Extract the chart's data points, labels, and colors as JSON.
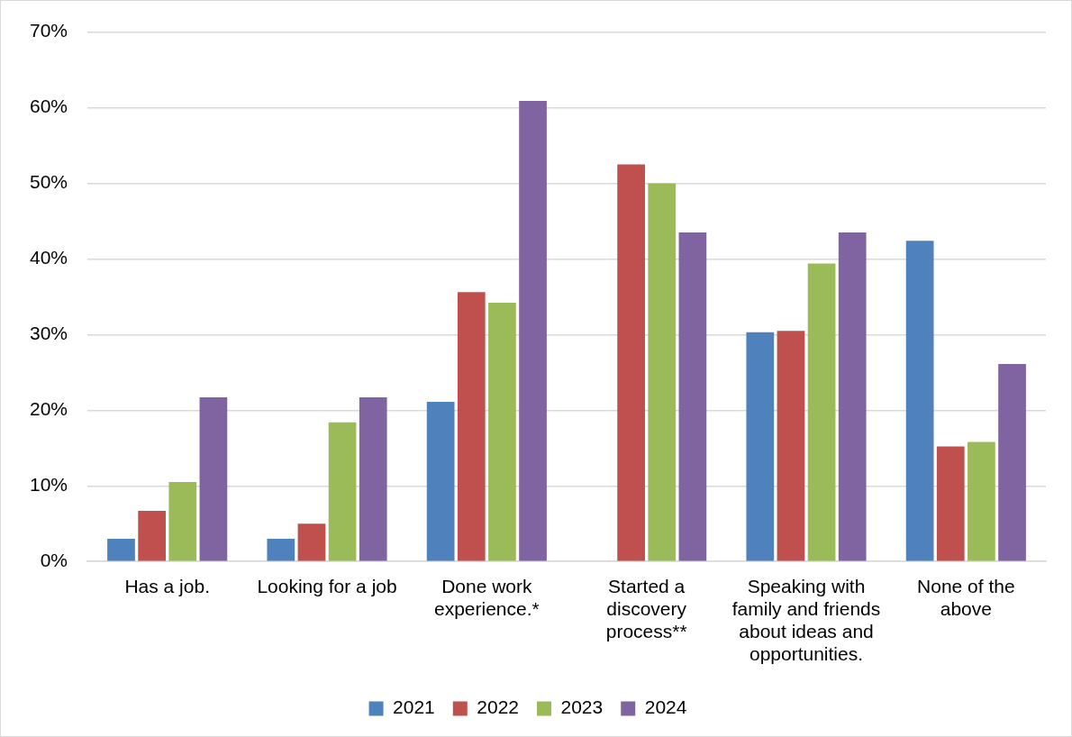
{
  "chart_data": {
    "type": "bar",
    "categories": [
      "Has a job.",
      "Looking for a job",
      "Done work experience.*",
      "Started a discovery process**",
      "Speaking with family and friends about ideas and opportunities.",
      "None of the above"
    ],
    "series": [
      {
        "name": "2021",
        "color": "#4f81bd",
        "values": [
          3.0,
          3.0,
          21.1,
          null,
          30.3,
          42.4
        ]
      },
      {
        "name": "2022",
        "color": "#c0504d",
        "values": [
          6.7,
          5.0,
          35.6,
          52.5,
          30.5,
          15.2
        ]
      },
      {
        "name": "2023",
        "color": "#9bbb59",
        "values": [
          10.5,
          18.4,
          34.2,
          50.0,
          39.4,
          15.8
        ]
      },
      {
        "name": "2024",
        "color": "#8064a2",
        "values": [
          21.7,
          21.7,
          60.9,
          43.5,
          43.5,
          26.1
        ]
      }
    ],
    "ylim": [
      0,
      70
    ],
    "yticks": [
      {
        "value": 0,
        "label": "0%"
      },
      {
        "value": 10,
        "label": "10%"
      },
      {
        "value": 20,
        "label": "20%"
      },
      {
        "value": 30,
        "label": "30%"
      },
      {
        "value": 40,
        "label": "40%"
      },
      {
        "value": 50,
        "label": "50%"
      },
      {
        "value": 60,
        "label": "60%"
      },
      {
        "value": 70,
        "label": "70%"
      }
    ],
    "grid": "y",
    "legend": "bottom"
  }
}
